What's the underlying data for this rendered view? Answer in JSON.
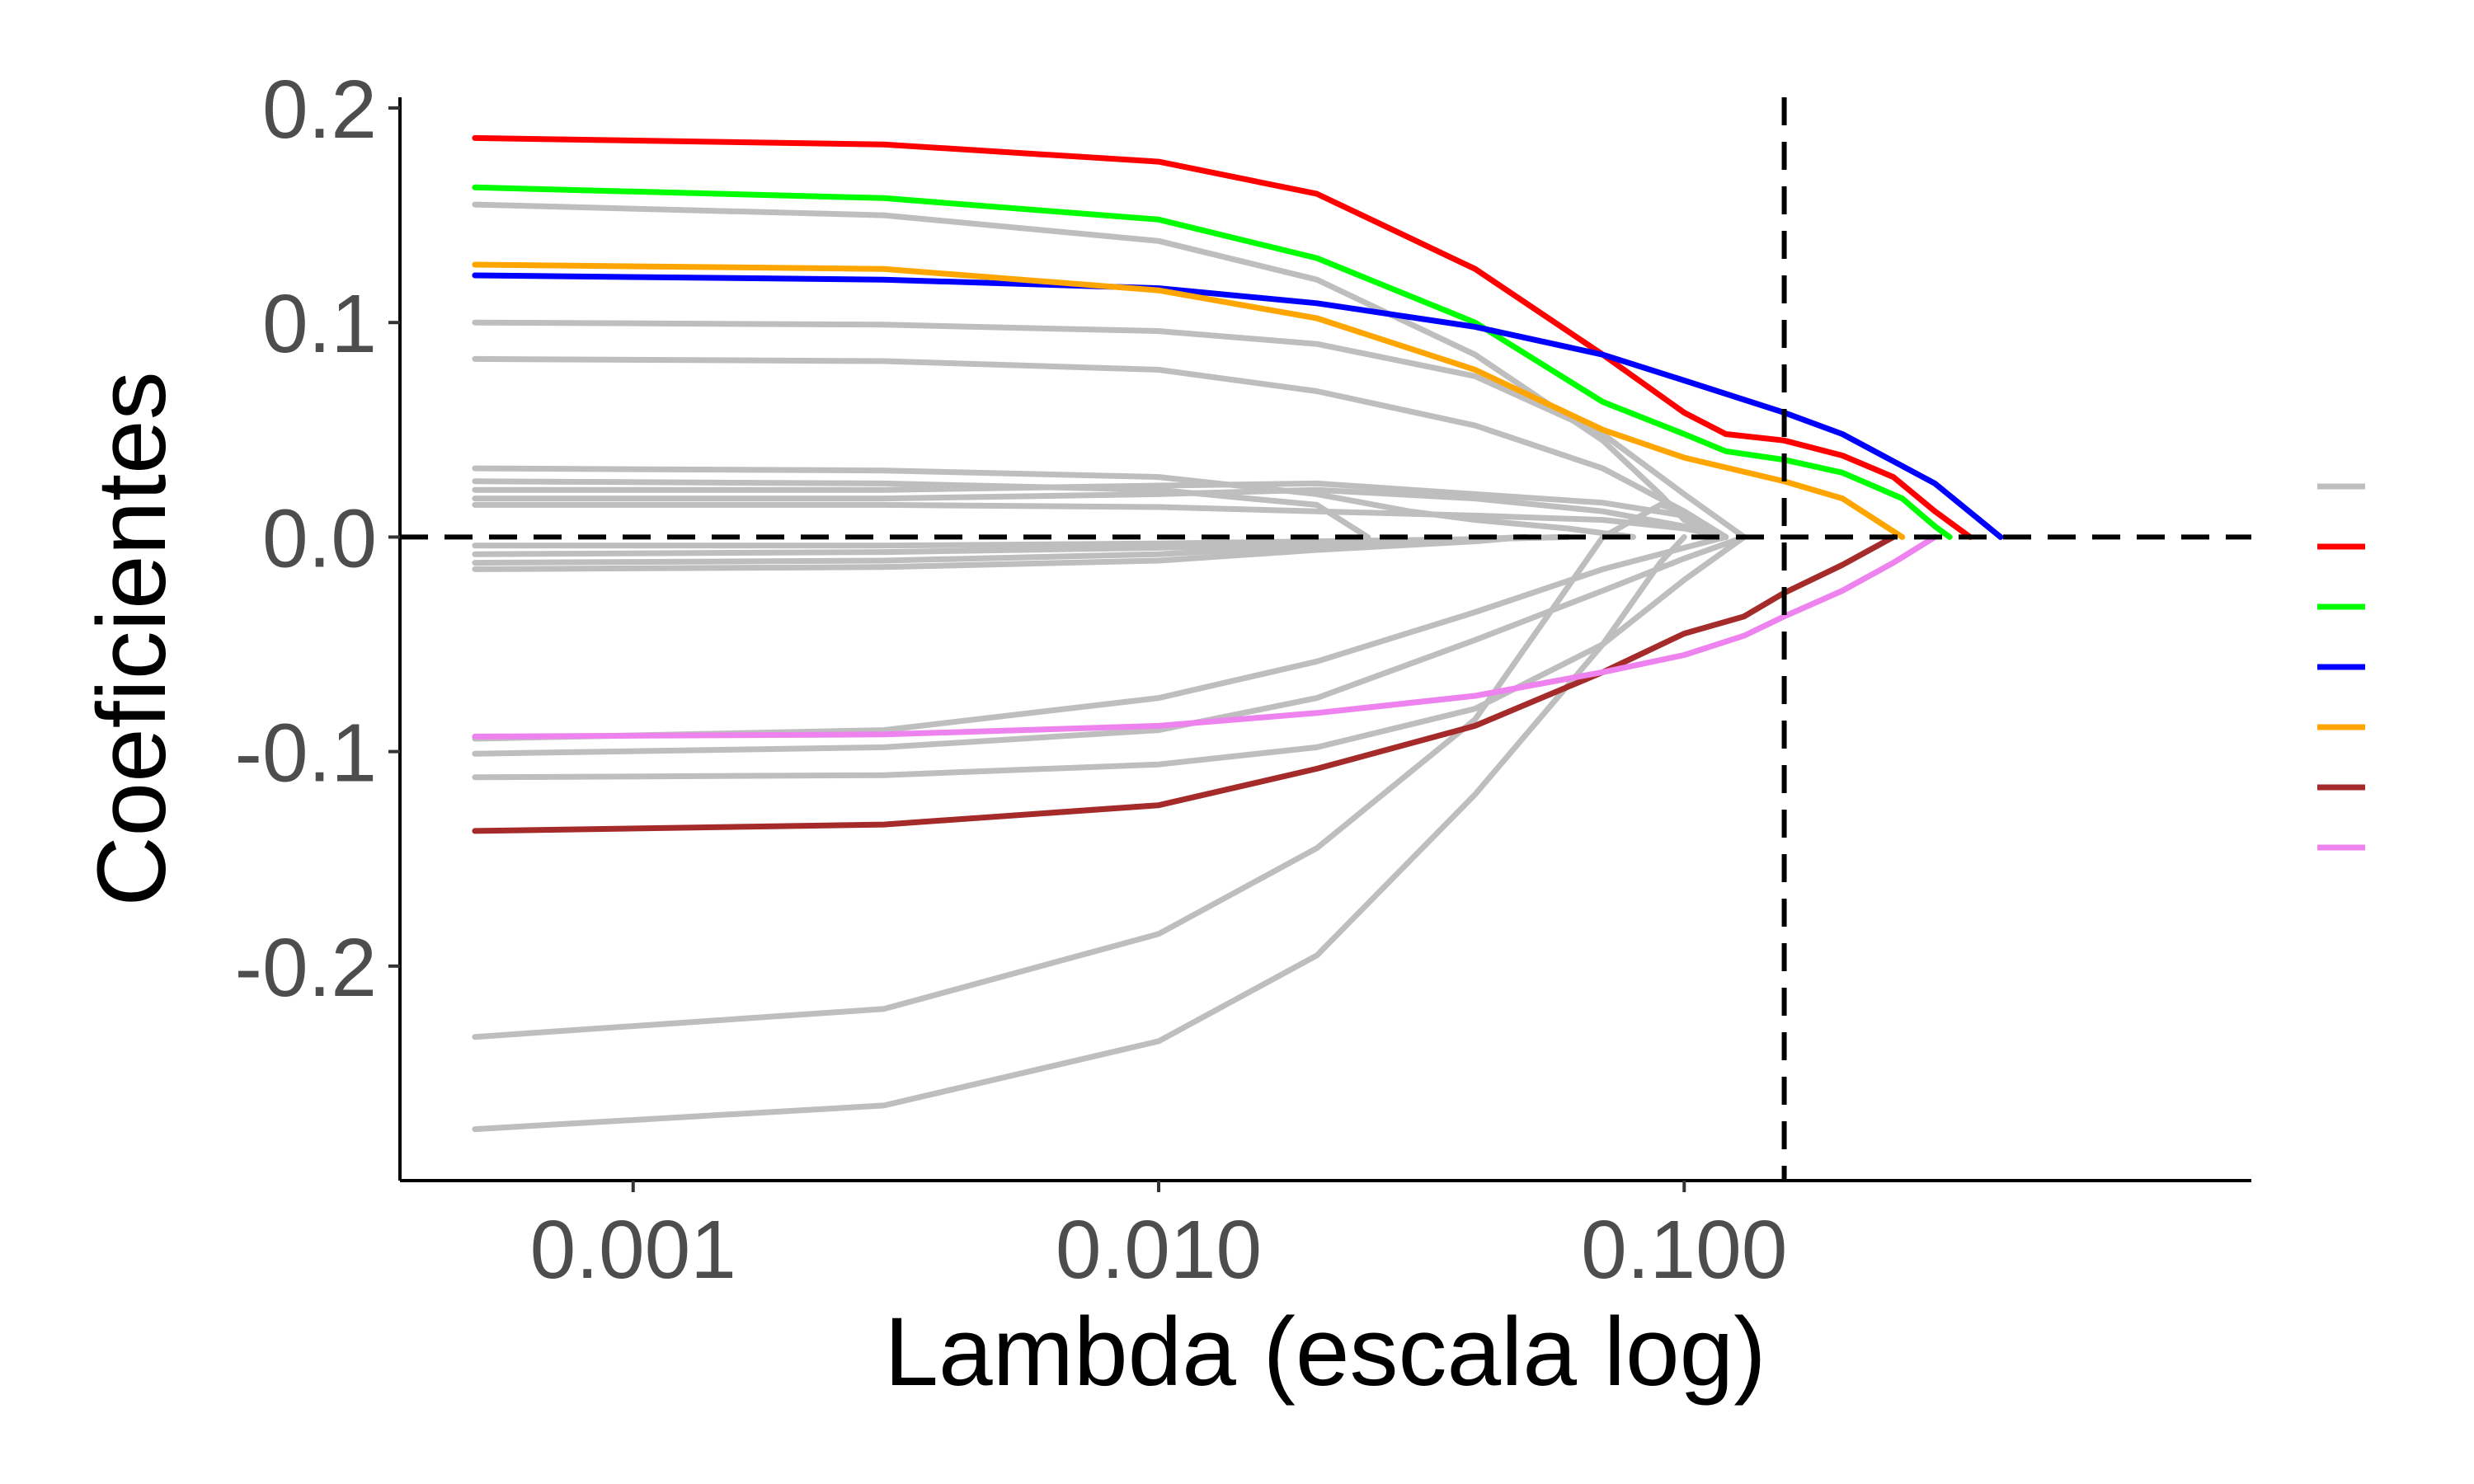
{
  "chart_data": {
    "type": "line",
    "title": "",
    "xlabel": "Lambda (escala log)",
    "ylabel": "Coeficientes",
    "x_scale": "log",
    "xlim": [
      0.00036,
      1.2
    ],
    "ylim": [
      -0.3,
      0.205
    ],
    "x_ticks": [
      {
        "value": 0.001,
        "label": "0.001"
      },
      {
        "value": 0.01,
        "label": "0.010"
      },
      {
        "value": 0.1,
        "label": "0.100"
      }
    ],
    "y_ticks": [
      {
        "value": 0.2,
        "label": "0.2"
      },
      {
        "value": 0.1,
        "label": "0.1"
      },
      {
        "value": 0.0,
        "label": "0.0"
      },
      {
        "value": -0.1,
        "label": "-0.1"
      },
      {
        "value": -0.2,
        "label": "-0.2"
      }
    ],
    "reference_lines": {
      "horizontal_y": 0.0,
      "vertical_x": 0.155
    },
    "grid": false,
    "legend_placement": "right",
    "legend_keys": [
      "#bebebe",
      "#ff0000",
      "#00ff00",
      "#0000ff",
      "#ffa500",
      "#a52a2a",
      "#ee82ee"
    ],
    "series": [
      {
        "color": "#bebebe",
        "points": [
          [
            0.0005,
            0.155
          ],
          [
            0.003,
            0.15
          ],
          [
            0.01,
            0.138
          ],
          [
            0.02,
            0.12
          ],
          [
            0.04,
            0.085
          ],
          [
            0.07,
            0.045
          ],
          [
            0.09,
            0.02
          ],
          [
            0.1,
            0.008
          ],
          [
            0.12,
            0.0
          ]
        ]
      },
      {
        "color": "#bebebe",
        "points": [
          [
            0.0005,
            0.1
          ],
          [
            0.003,
            0.099
          ],
          [
            0.01,
            0.096
          ],
          [
            0.02,
            0.09
          ],
          [
            0.04,
            0.075
          ],
          [
            0.07,
            0.048
          ],
          [
            0.1,
            0.02
          ],
          [
            0.13,
            0.0
          ]
        ]
      },
      {
        "color": "#bebebe",
        "points": [
          [
            0.0005,
            0.083
          ],
          [
            0.003,
            0.082
          ],
          [
            0.01,
            0.078
          ],
          [
            0.02,
            0.068
          ],
          [
            0.04,
            0.052
          ],
          [
            0.07,
            0.032
          ],
          [
            0.1,
            0.012
          ],
          [
            0.12,
            0.0
          ]
        ]
      },
      {
        "color": "#bebebe",
        "points": [
          [
            0.0005,
            0.032
          ],
          [
            0.003,
            0.031
          ],
          [
            0.01,
            0.028
          ],
          [
            0.02,
            0.02
          ],
          [
            0.03,
            0.012
          ],
          [
            0.04,
            0.008
          ],
          [
            0.06,
            0.004
          ],
          [
            0.08,
            0.0
          ]
        ]
      },
      {
        "color": "#bebebe",
        "points": [
          [
            0.0005,
            0.026
          ],
          [
            0.003,
            0.025
          ],
          [
            0.01,
            0.022
          ],
          [
            0.02,
            0.015
          ],
          [
            0.025,
            0.0
          ]
        ]
      },
      {
        "color": "#bebebe",
        "points": [
          [
            0.0005,
            0.022
          ],
          [
            0.003,
            0.022
          ],
          [
            0.01,
            0.024
          ],
          [
            0.02,
            0.025
          ],
          [
            0.04,
            0.02
          ],
          [
            0.07,
            0.016
          ],
          [
            0.1,
            0.01
          ],
          [
            0.12,
            0.0
          ]
        ]
      },
      {
        "color": "#bebebe",
        "points": [
          [
            0.0005,
            0.018
          ],
          [
            0.003,
            0.018
          ],
          [
            0.01,
            0.02
          ],
          [
            0.02,
            0.022
          ],
          [
            0.04,
            0.018
          ],
          [
            0.07,
            0.012
          ],
          [
            0.1,
            0.005
          ],
          [
            0.12,
            0.0
          ]
        ]
      },
      {
        "color": "#bebebe",
        "points": [
          [
            0.0005,
            0.015
          ],
          [
            0.003,
            0.015
          ],
          [
            0.01,
            0.014
          ],
          [
            0.02,
            0.012
          ],
          [
            0.04,
            0.01
          ],
          [
            0.07,
            0.008
          ],
          [
            0.1,
            0.004
          ],
          [
            0.12,
            0.0
          ]
        ]
      },
      {
        "color": "#bebebe",
        "points": [
          [
            0.0005,
            -0.004
          ],
          [
            0.003,
            -0.004
          ],
          [
            0.01,
            -0.003
          ],
          [
            0.02,
            -0.002
          ],
          [
            0.04,
            -0.001
          ],
          [
            0.06,
            0.0
          ]
        ]
      },
      {
        "color": "#bebebe",
        "points": [
          [
            0.0005,
            -0.008
          ],
          [
            0.003,
            -0.007
          ],
          [
            0.01,
            -0.005
          ],
          [
            0.02,
            -0.003
          ],
          [
            0.04,
            -0.001
          ],
          [
            0.06,
            0.0
          ]
        ]
      },
      {
        "color": "#bebebe",
        "points": [
          [
            0.0005,
            -0.012
          ],
          [
            0.003,
            -0.011
          ],
          [
            0.01,
            -0.008
          ],
          [
            0.02,
            -0.004
          ],
          [
            0.04,
            -0.001
          ],
          [
            0.05,
            0.0
          ]
        ]
      },
      {
        "color": "#bebebe",
        "points": [
          [
            0.0005,
            -0.015
          ],
          [
            0.003,
            -0.014
          ],
          [
            0.01,
            -0.011
          ],
          [
            0.02,
            -0.006
          ],
          [
            0.04,
            -0.002
          ],
          [
            0.05,
            0.0
          ]
        ]
      },
      {
        "color": "#bebebe",
        "points": [
          [
            0.0005,
            -0.094
          ],
          [
            0.003,
            -0.09
          ],
          [
            0.01,
            -0.075
          ],
          [
            0.02,
            -0.058
          ],
          [
            0.04,
            -0.035
          ],
          [
            0.07,
            -0.015
          ],
          [
            0.1,
            -0.005
          ],
          [
            0.12,
            0.0
          ]
        ]
      },
      {
        "color": "#bebebe",
        "points": [
          [
            0.0005,
            -0.101
          ],
          [
            0.003,
            -0.098
          ],
          [
            0.01,
            -0.09
          ],
          [
            0.02,
            -0.075
          ],
          [
            0.04,
            -0.048
          ],
          [
            0.07,
            -0.025
          ],
          [
            0.1,
            -0.01
          ],
          [
            0.13,
            0.0
          ]
        ]
      },
      {
        "color": "#bebebe",
        "points": [
          [
            0.0005,
            -0.112
          ],
          [
            0.003,
            -0.111
          ],
          [
            0.01,
            -0.106
          ],
          [
            0.02,
            -0.098
          ],
          [
            0.04,
            -0.08
          ],
          [
            0.07,
            -0.05
          ],
          [
            0.1,
            -0.02
          ],
          [
            0.13,
            0.0
          ]
        ]
      },
      {
        "color": "#bebebe",
        "points": [
          [
            0.0005,
            -0.233
          ],
          [
            0.003,
            -0.22
          ],
          [
            0.01,
            -0.185
          ],
          [
            0.02,
            -0.145
          ],
          [
            0.04,
            -0.085
          ],
          [
            0.07,
            0.0
          ],
          [
            0.09,
            0.015
          ],
          [
            0.1,
            0.012
          ],
          [
            0.12,
            0.0
          ]
        ]
      },
      {
        "color": "#bebebe",
        "points": [
          [
            0.0005,
            -0.276
          ],
          [
            0.003,
            -0.265
          ],
          [
            0.01,
            -0.235
          ],
          [
            0.02,
            -0.195
          ],
          [
            0.04,
            -0.12
          ],
          [
            0.07,
            -0.05
          ],
          [
            0.09,
            -0.012
          ],
          [
            0.1,
            0.0
          ]
        ]
      },
      {
        "color": "#ff0000",
        "points": [
          [
            0.0005,
            0.186
          ],
          [
            0.003,
            0.183
          ],
          [
            0.01,
            0.175
          ],
          [
            0.02,
            0.16
          ],
          [
            0.04,
            0.125
          ],
          [
            0.07,
            0.085
          ],
          [
            0.1,
            0.058
          ],
          [
            0.12,
            0.048
          ],
          [
            0.155,
            0.045
          ],
          [
            0.2,
            0.038
          ],
          [
            0.25,
            0.028
          ],
          [
            0.3,
            0.012
          ],
          [
            0.35,
            0.0
          ]
        ]
      },
      {
        "color": "#00ff00",
        "points": [
          [
            0.0005,
            0.163
          ],
          [
            0.003,
            0.158
          ],
          [
            0.01,
            0.148
          ],
          [
            0.02,
            0.13
          ],
          [
            0.04,
            0.1
          ],
          [
            0.07,
            0.063
          ],
          [
            0.1,
            0.048
          ],
          [
            0.12,
            0.04
          ],
          [
            0.155,
            0.036
          ],
          [
            0.2,
            0.03
          ],
          [
            0.26,
            0.018
          ],
          [
            0.3,
            0.005
          ],
          [
            0.32,
            0.0
          ]
        ]
      },
      {
        "color": "#0000ff",
        "points": [
          [
            0.0005,
            0.122
          ],
          [
            0.003,
            0.12
          ],
          [
            0.01,
            0.116
          ],
          [
            0.02,
            0.109
          ],
          [
            0.04,
            0.098
          ],
          [
            0.07,
            0.085
          ],
          [
            0.1,
            0.073
          ],
          [
            0.155,
            0.058
          ],
          [
            0.2,
            0.048
          ],
          [
            0.3,
            0.025
          ],
          [
            0.4,
            0.0
          ]
        ]
      },
      {
        "color": "#ffa500",
        "points": [
          [
            0.0005,
            0.127
          ],
          [
            0.003,
            0.125
          ],
          [
            0.01,
            0.115
          ],
          [
            0.02,
            0.102
          ],
          [
            0.04,
            0.078
          ],
          [
            0.07,
            0.05
          ],
          [
            0.1,
            0.037
          ],
          [
            0.155,
            0.026
          ],
          [
            0.2,
            0.018
          ],
          [
            0.26,
            0.0
          ]
        ]
      },
      {
        "color": "#a52a2a",
        "points": [
          [
            0.0005,
            -0.137
          ],
          [
            0.003,
            -0.134
          ],
          [
            0.01,
            -0.125
          ],
          [
            0.02,
            -0.108
          ],
          [
            0.04,
            -0.088
          ],
          [
            0.07,
            -0.063
          ],
          [
            0.1,
            -0.045
          ],
          [
            0.13,
            -0.037
          ],
          [
            0.155,
            -0.026
          ],
          [
            0.2,
            -0.013
          ],
          [
            0.25,
            0.0
          ]
        ]
      },
      {
        "color": "#ee82ee",
        "points": [
          [
            0.0005,
            -0.093
          ],
          [
            0.003,
            -0.092
          ],
          [
            0.01,
            -0.088
          ],
          [
            0.02,
            -0.082
          ],
          [
            0.04,
            -0.074
          ],
          [
            0.07,
            -0.063
          ],
          [
            0.1,
            -0.055
          ],
          [
            0.13,
            -0.046
          ],
          [
            0.155,
            -0.037
          ],
          [
            0.2,
            -0.025
          ],
          [
            0.25,
            -0.012
          ],
          [
            0.3,
            0.0
          ]
        ]
      }
    ]
  }
}
